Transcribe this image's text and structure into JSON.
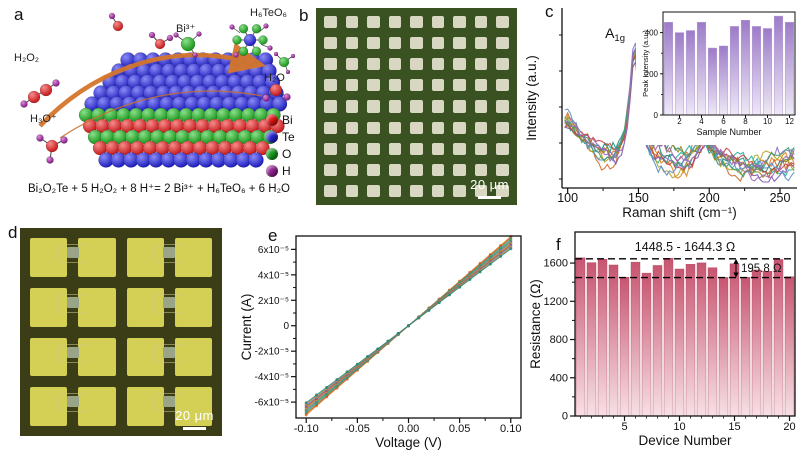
{
  "panels": {
    "a": {
      "label": "a",
      "equation": "Bi₂O₂Te + 5 H₂O₂ + 8 H⁺= 2 Bi³⁺ + H₆TeO₆ + 6 H₂O",
      "molecules": {
        "h2o2": "H₂O₂",
        "h3o": "H₃O⁺",
        "bi3": "Bi³⁺",
        "h6teo6": "H₆TeO₆",
        "h2o": "H₂O"
      },
      "legend": [
        {
          "name": "Bi",
          "color": "#dd1111"
        },
        {
          "name": "Te",
          "color": "#2222cc"
        },
        {
          "name": "O",
          "color": "#11991c"
        },
        {
          "name": "H",
          "color": "#8b1b8b"
        }
      ],
      "arrow_color": "#d4762c"
    },
    "b": {
      "label": "b",
      "scale_bar": "20 μm",
      "grid": {
        "rows": 9,
        "cols": 9,
        "bg": "#3a5222",
        "square": "#d8d8c2"
      }
    },
    "c": {
      "label": "c"
    },
    "d": {
      "label": "d",
      "scale_bar": "20 μm",
      "grid": {
        "rows": 4,
        "cols": 4,
        "bg": "#3a3d15",
        "square": "#d4cf55",
        "channel": "#9aa487"
      }
    },
    "e": {
      "label": "e"
    },
    "f": {
      "label": "f"
    }
  },
  "chart_data": [
    {
      "id": "raman",
      "type": "line",
      "xlabel": "Raman shift (cm⁻¹)",
      "ylabel": "Intensity (a.u.)",
      "xlim": [
        96,
        262
      ],
      "xticks": [
        100,
        150,
        200,
        250
      ],
      "xminor": [
        125,
        175,
        225
      ],
      "peak_label_main": "A",
      "peak_label_sub": "1g",
      "peak_positions": [
        147,
        197
      ],
      "n_curves": 12,
      "colors": [
        "#e0821e",
        "#cf6a28",
        "#26b2a2",
        "#1f8f82",
        "#8f6cc8",
        "#7a54b0",
        "#b4a426",
        "#948618",
        "#c44444",
        "#5c8cc4",
        "#3aa06a",
        "#a06ab4"
      ],
      "profile_x": [
        100,
        105,
        110,
        115,
        120,
        125,
        130,
        135,
        140,
        143,
        145,
        147,
        149,
        151,
        154,
        158,
        163,
        170,
        178,
        185,
        190,
        194,
        197,
        200,
        205,
        212,
        220,
        230,
        240,
        250,
        260
      ],
      "profile_y": [
        0.42,
        0.36,
        0.3,
        0.25,
        0.21,
        0.19,
        0.18,
        0.2,
        0.32,
        0.5,
        0.72,
        0.98,
        0.8,
        0.55,
        0.35,
        0.24,
        0.18,
        0.14,
        0.13,
        0.15,
        0.2,
        0.26,
        0.3,
        0.24,
        0.17,
        0.13,
        0.11,
        0.1,
        0.1,
        0.11,
        0.12
      ]
    },
    {
      "id": "raman-inset",
      "type": "bar",
      "xlabel": "Sample Number",
      "ylabel": "Peak Intensity (a.u.)",
      "categories": [
        1,
        2,
        3,
        4,
        5,
        6,
        7,
        8,
        9,
        10,
        11,
        12
      ],
      "values": [
        450,
        400,
        410,
        450,
        325,
        335,
        430,
        460,
        430,
        420,
        480,
        450
      ],
      "ylim": [
        0,
        500
      ],
      "yticks": [
        0,
        200,
        400
      ],
      "yminor": [
        100,
        300
      ],
      "xticks": [
        2,
        4,
        6,
        8,
        10,
        12
      ],
      "bar_color_top": "#9c7bc8",
      "bar_color_bottom": "#eee9f6",
      "bar_stroke": "#b49ad6"
    },
    {
      "id": "iv",
      "type": "line",
      "xlabel": "Voltage (V)",
      "ylabel": "Current (A)",
      "xlim": [
        -0.11,
        0.11
      ],
      "xticks": [
        -0.1,
        -0.05,
        0.0,
        0.05,
        0.1
      ],
      "xtick_labels": [
        "-0.10",
        "-0.05",
        "0.00",
        "0.05",
        "0.10"
      ],
      "xminor": [
        -0.075,
        -0.025,
        0.025,
        0.075
      ],
      "ylim_e5": [
        -7.25,
        7.05
      ],
      "yticks_e5": [
        6,
        4,
        2,
        0,
        -2,
        -4,
        -6
      ],
      "ytick_labels": [
        "6x10⁻⁵",
        "4x10⁻⁵",
        "2x10⁻⁵",
        "0",
        "-2x10⁻⁵",
        "-4x10⁻⁵",
        "-6x10⁻⁵"
      ],
      "yminor_e5": [
        5,
        3,
        1,
        -1,
        -3,
        -5
      ],
      "lines_end_current_e5": [
        7.0,
        6.9,
        6.78,
        6.66,
        6.55,
        6.45,
        6.35,
        6.25,
        6.15,
        6.05
      ],
      "colors": [
        "#e07820",
        "#cc5a1e",
        "#28a598",
        "#3f9b4f",
        "#7f68b8",
        "#b8a21e",
        "#c24040",
        "#5588c8",
        "#d98a30",
        "#1f8a7d"
      ]
    },
    {
      "id": "resistance",
      "type": "bar",
      "xlabel": "Device Number",
      "ylabel": "Resistance (Ω)",
      "categories": [
        1,
        2,
        3,
        4,
        5,
        6,
        7,
        8,
        9,
        10,
        11,
        12,
        13,
        14,
        15,
        16,
        17,
        18,
        19,
        20
      ],
      "values": [
        1655,
        1605,
        1640,
        1580,
        1452,
        1610,
        1495,
        1575,
        1650,
        1538,
        1588,
        1602,
        1552,
        1450,
        1593,
        1452,
        1528,
        1515,
        1638,
        1458
      ],
      "ylim": [
        0,
        1925
      ],
      "yticks": [
        0,
        400,
        800,
        1200,
        1600
      ],
      "yminor": [
        200,
        600,
        1000,
        1400
      ],
      "xticks": [
        5,
        10,
        15,
        20
      ],
      "dashed_lines": [
        1448.5,
        1644.3
      ],
      "range_label": "1448.5 - 1644.3 Ω",
      "delta_label": "195.8 Ω",
      "bar_color_top": "#c75570",
      "bar_color_bottom": "#f7e0e5",
      "bar_stroke": "#b04868"
    }
  ]
}
